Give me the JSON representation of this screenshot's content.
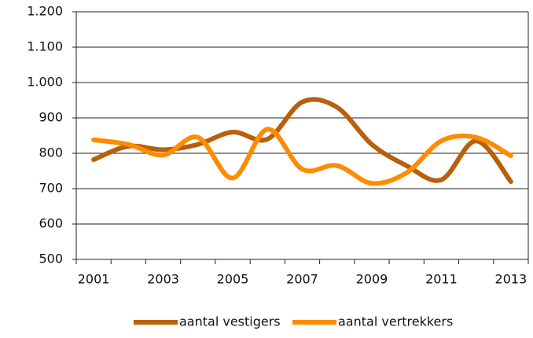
{
  "chart_data": {
    "type": "line",
    "categories": [
      "2001",
      null,
      "2003",
      null,
      "2005",
      null,
      "2007",
      null,
      "2009",
      null,
      "2011",
      null,
      "2013"
    ],
    "series": [
      {
        "name": "aantal vestigers",
        "color": "#b8600c",
        "values": [
          782,
          820,
          810,
          825,
          860,
          840,
          945,
          930,
          825,
          765,
          725,
          835,
          720
        ]
      },
      {
        "name": "aantal vertrekkers",
        "color": "#ff8c00",
        "values": [
          838,
          825,
          795,
          845,
          730,
          868,
          755,
          765,
          715,
          745,
          835,
          845,
          793
        ]
      }
    ],
    "ylim": [
      500,
      1200
    ],
    "yticks": [
      500,
      600,
      700,
      800,
      900,
      {
        "value": 1000,
        "label": "1.000"
      },
      {
        "value": 1100,
        "label": "1.100"
      },
      {
        "value": 1200,
        "label": "1.200"
      }
    ],
    "grid": true,
    "legend": "bottom"
  }
}
